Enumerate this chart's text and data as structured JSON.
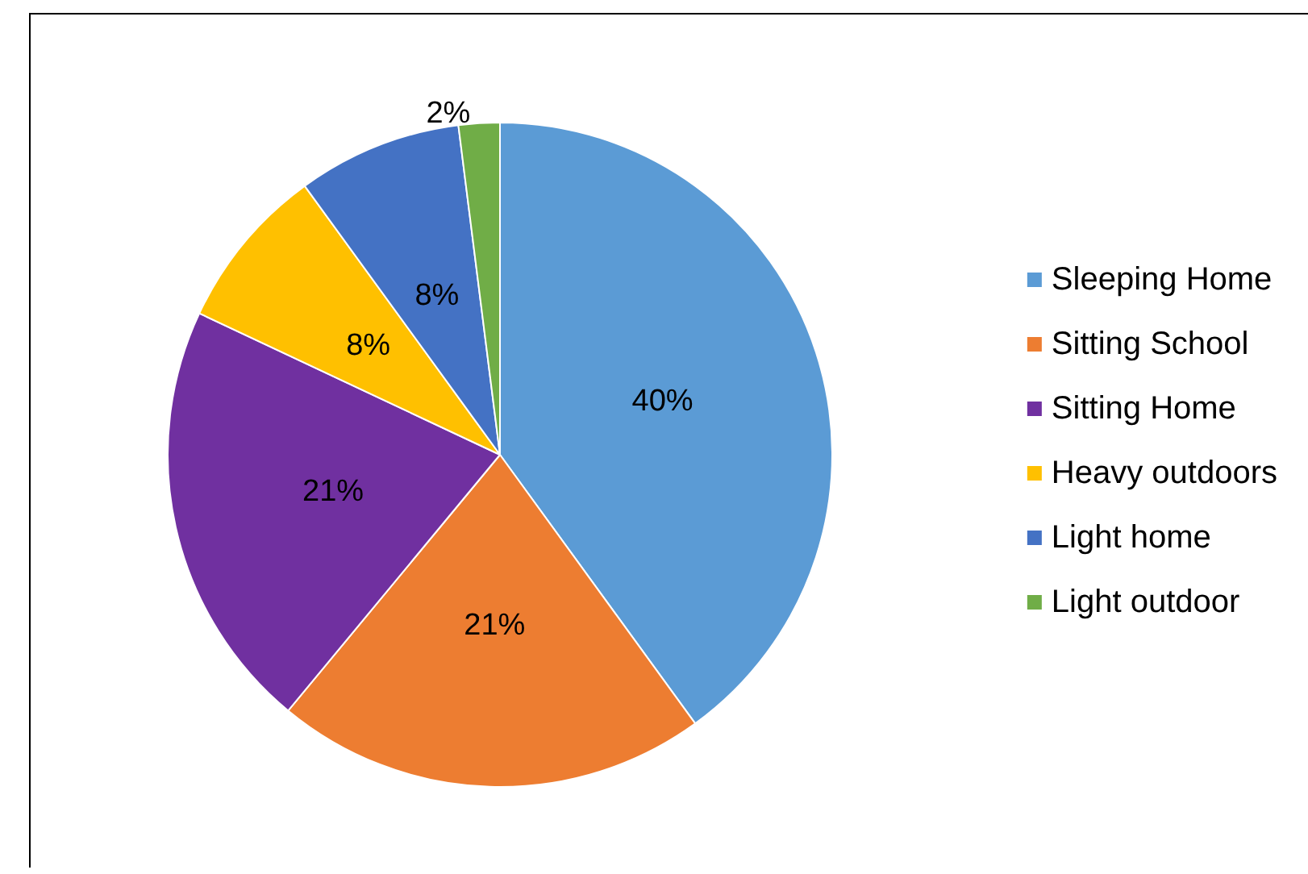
{
  "chart_data": {
    "type": "pie",
    "categories": [
      "Sleeping Home",
      "Sitting School",
      "Sitting Home",
      "Heavy outdoors",
      "Light home",
      "Light outdoor"
    ],
    "values": [
      40,
      21,
      21,
      8,
      8,
      2
    ],
    "colors": [
      "#5b9bd5",
      "#ed7d31",
      "#7030a0",
      "#ffc000",
      "#4472c4",
      "#70ad47"
    ],
    "value_labels": [
      "40%",
      "21%",
      "21%",
      "8%",
      "8%",
      "2%"
    ],
    "legend": "right"
  }
}
